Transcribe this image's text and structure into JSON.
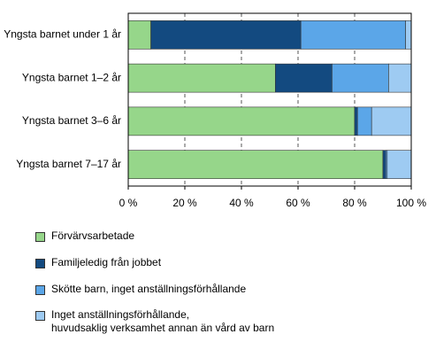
{
  "chart_data": {
    "type": "stacked-barh",
    "categories": [
      "Yngsta barnet under 1 år",
      "Yngsta barnet 1–2 år",
      "Yngsta barnet 3–6 år",
      "Yngsta barnet 7–17 år"
    ],
    "series": [
      {
        "name": "Förvärvsarbetade",
        "color": "#96d68a",
        "values": [
          8,
          52,
          80,
          90
        ]
      },
      {
        "name": "Familjeledig från jobbet",
        "color": "#134a80",
        "values": [
          53,
          20,
          1,
          1
        ]
      },
      {
        "name": "Skötte barn, inget anställningsförhållande",
        "color": "#5ba6e8",
        "values": [
          37,
          20,
          5,
          0.5
        ]
      },
      {
        "name": "Inget anställningsförhållande,\nhuvudsaklig verksamhet annan än vård av barn",
        "color": "#9ecbf2",
        "values": [
          2,
          8,
          14,
          8.5
        ]
      }
    ],
    "xlim": [
      0,
      100
    ],
    "xticks": [
      {
        "value": 0,
        "label": "0 %"
      },
      {
        "value": 20,
        "label": "20 %"
      },
      {
        "value": 40,
        "label": "40 %"
      },
      {
        "value": 60,
        "label": "60 %"
      },
      {
        "value": 80,
        "label": "80 %"
      },
      {
        "value": 100,
        "label": "100 %"
      }
    ],
    "grid": true
  }
}
